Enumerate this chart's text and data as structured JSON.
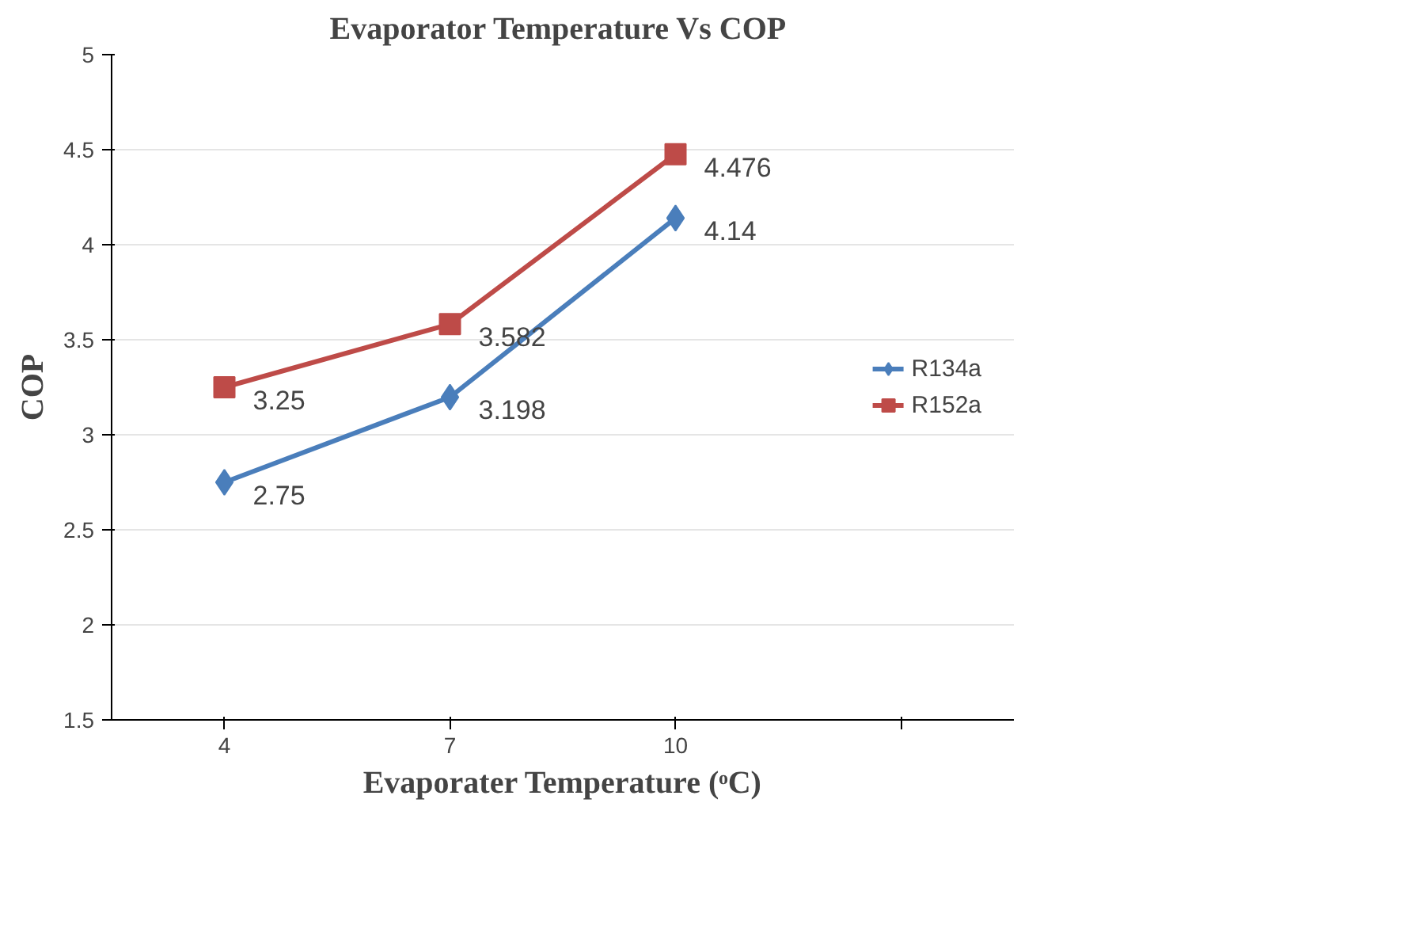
{
  "chart_data": {
    "type": "line",
    "title": "Evaporator Temperature Vs  COP",
    "xlabel": "Evaporater Temperature (ᵒC)",
    "ylabel": "COP",
    "categories": [
      "4",
      "7",
      "10",
      null
    ],
    "series": [
      {
        "name": "R134a",
        "color": "#4a7ebb",
        "marker": "diamond",
        "values": [
          2.75,
          3.198,
          4.14,
          null
        ]
      },
      {
        "name": "R152a",
        "color": "#be4b48",
        "marker": "square",
        "values": [
          3.25,
          3.582,
          4.476,
          null
        ]
      }
    ],
    "ylim": [
      1.5,
      5
    ],
    "yticks": [
      1.5,
      2,
      2.5,
      3,
      3.5,
      4,
      4.5,
      5
    ],
    "grid": "y",
    "legend": "right",
    "data_labels": true
  }
}
